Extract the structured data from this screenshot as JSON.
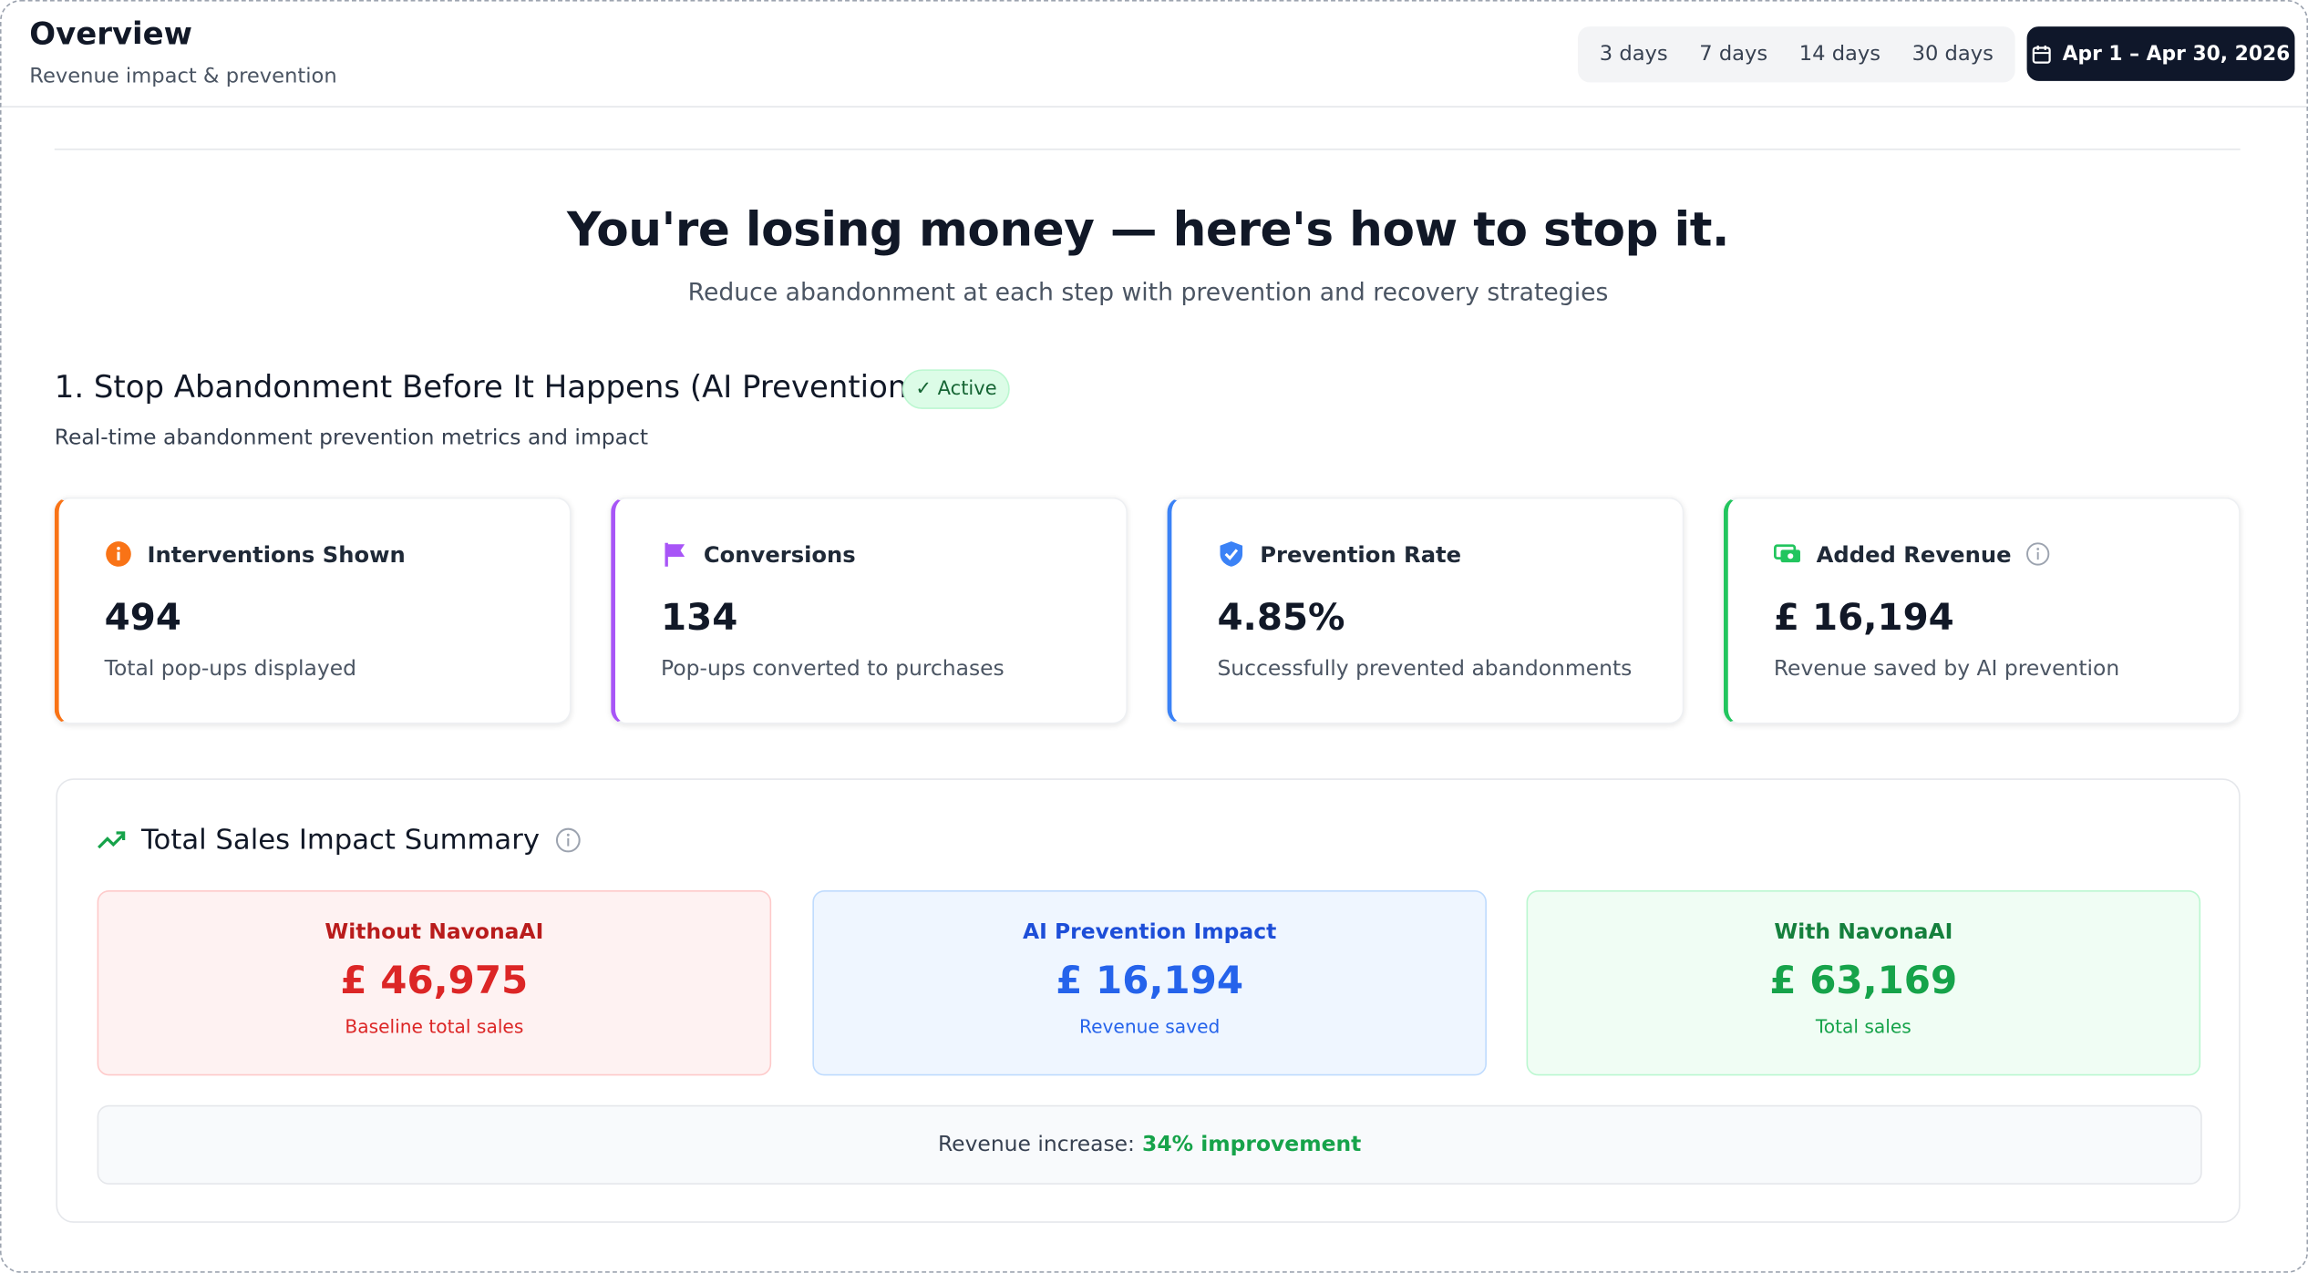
{
  "header": {
    "title": "Overview",
    "subtitle": "Revenue impact & prevention",
    "ranges": [
      "3 days",
      "7 days",
      "14 days",
      "30 days"
    ],
    "date_range": "Apr 1 – Apr 30, 2026"
  },
  "hero": {
    "title": "You're losing money — here's how to stop it.",
    "subtitle": "Reduce abandonment at each step with prevention and recovery strategies"
  },
  "section": {
    "title": "1. Stop Abandonment Before It Happens (AI Prevention)",
    "badge": "✓ Active",
    "subtitle": "Real-time abandonment prevention metrics and impact",
    "cards": [
      {
        "label": "Interventions Shown",
        "value": "494",
        "caption": "Total pop-ups displayed"
      },
      {
        "label": "Conversions",
        "value": "134",
        "caption": "Pop-ups converted to purchases"
      },
      {
        "label": "Prevention Rate",
        "value": "4.85%",
        "caption": "Successfully prevented abandonments"
      },
      {
        "label": "Added Revenue",
        "value": "£ 16,194",
        "caption": "Revenue saved by AI prevention"
      }
    ]
  },
  "summary": {
    "title": "Total Sales Impact Summary",
    "panels": [
      {
        "label": "Without NavonaAI",
        "value": "£ 46,975",
        "caption": "Baseline total sales"
      },
      {
        "label": "AI Prevention Impact",
        "value": "£ 16,194",
        "caption": "Revenue saved"
      },
      {
        "label": "With NavonaAI",
        "value": "£ 63,169",
        "caption": "Total sales"
      }
    ],
    "footer": {
      "label": "Revenue increase:",
      "highlight": "34% improvement"
    }
  }
}
